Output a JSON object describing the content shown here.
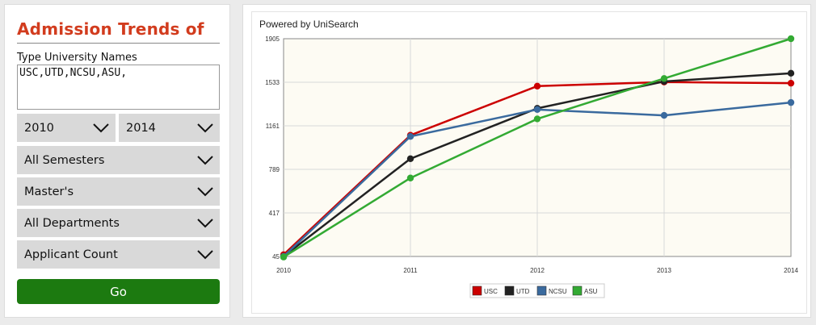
{
  "filters": {
    "title": "Admission Trends of",
    "names_label": "Type University Names",
    "names_value": "USC,UTD,NCSU,ASU,",
    "start_year": "2010",
    "end_year": "2014",
    "semester": "All Semesters",
    "degree": "Master's",
    "department": "All Departments",
    "metric": "Applicant Count",
    "go_label": "Go"
  },
  "chart_header": {
    "powered_by": "Powered by UniSearch"
  },
  "chart_data": {
    "type": "line",
    "x": [
      "2010",
      "2011",
      "2012",
      "2013",
      "2014"
    ],
    "y_ticks": [
      45,
      417,
      789,
      1161,
      1533,
      1905
    ],
    "ylim": [
      45,
      1905
    ],
    "grid": true,
    "legend_position": "bottom-center",
    "series": [
      {
        "name": "USC",
        "color": "#cc0000",
        "values": [
          60,
          1080,
          1500,
          1535,
          1525
        ]
      },
      {
        "name": "UTD",
        "color": "#222222",
        "values": [
          45,
          880,
          1310,
          1540,
          1610
        ]
      },
      {
        "name": "NCSU",
        "color": "#3a6a9e",
        "values": [
          45,
          1070,
          1300,
          1250,
          1360
        ]
      },
      {
        "name": "ASU",
        "color": "#33aa33",
        "values": [
          40,
          715,
          1220,
          1565,
          1905
        ]
      }
    ]
  }
}
